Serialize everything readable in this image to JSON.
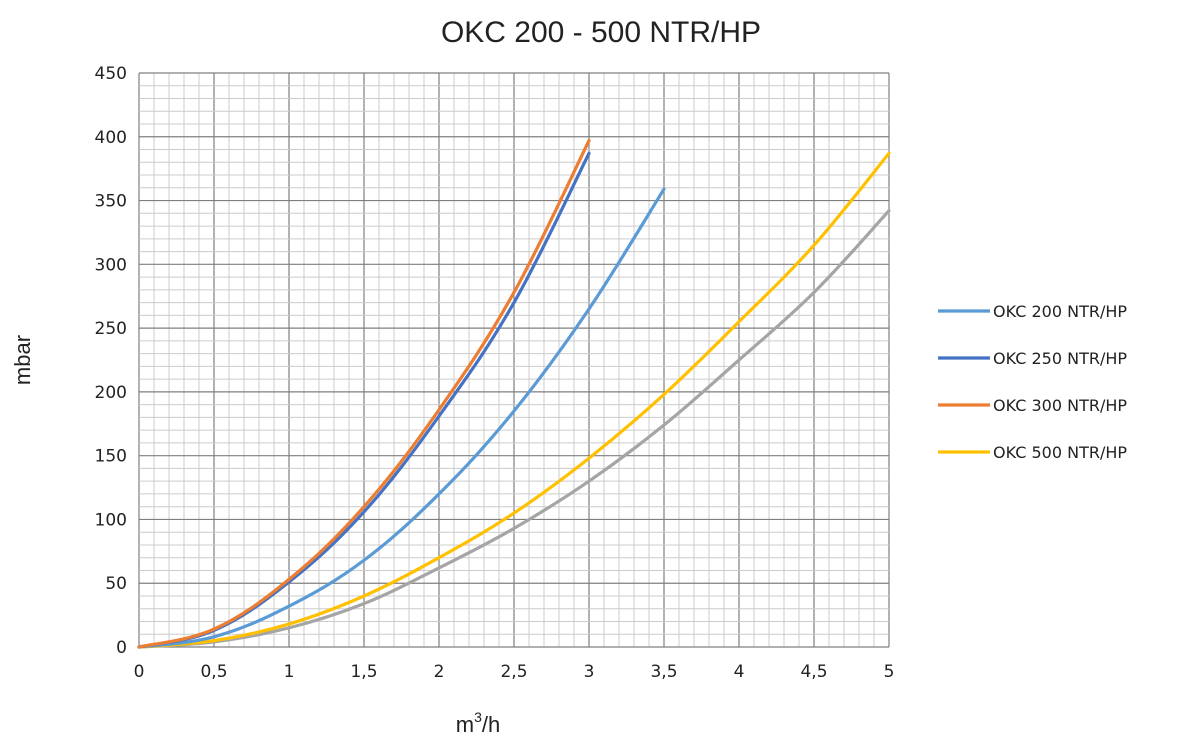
{
  "chart_data": {
    "type": "line",
    "title": "OKC 200 - 500 NTR/HP",
    "xlabel_base": "m",
    "xlabel_sup": "3",
    "xlabel_rest": "/h",
    "ylabel": "mbar",
    "xlim": [
      0,
      5
    ],
    "ylim": [
      0,
      450
    ],
    "x_ticks": [
      "0",
      "0,5",
      "1",
      "1,5",
      "2",
      "2,5",
      "3",
      "3,5",
      "4",
      "4,5",
      "5"
    ],
    "x_tick_values": [
      0,
      0.5,
      1,
      1.5,
      2,
      2.5,
      3,
      3.5,
      4,
      4.5,
      5
    ],
    "y_ticks": [
      "0",
      "50",
      "100",
      "150",
      "200",
      "250",
      "300",
      "350",
      "400",
      "450"
    ],
    "y_tick_values": [
      0,
      50,
      100,
      150,
      200,
      250,
      300,
      350,
      400,
      450
    ],
    "grid": true,
    "legend_position": "right",
    "series": [
      {
        "name": "",
        "color": "#a5a5a5",
        "x": [
          0,
          0.5,
          1,
          1.5,
          2,
          2.5,
          3,
          3.5,
          4,
          4.5,
          5
        ],
        "y": [
          0,
          4,
          15,
          34,
          62,
          93,
          130,
          174,
          225,
          278,
          342
        ]
      },
      {
        "name": "OKC 500 NTR/HP",
        "color": "#ffc000",
        "x": [
          0,
          0.5,
          1,
          1.5,
          2,
          2.5,
          3,
          3.5,
          4,
          4.5,
          5
        ],
        "y": [
          0,
          5,
          18,
          40,
          70,
          105,
          148,
          198,
          255,
          315,
          387
        ]
      },
      {
        "name": "OKC 200 NTR/HP",
        "color": "#5b9bd5",
        "x": [
          0,
          0.5,
          1,
          1.5,
          2,
          2.5,
          3,
          3.5
        ],
        "y": [
          0,
          8,
          32,
          68,
          120,
          185,
          265,
          359
        ]
      },
      {
        "name": "OKC 250 NTR/HP",
        "color": "#4472c4",
        "x": [
          0,
          0.5,
          1,
          1.5,
          2,
          2.5,
          3
        ],
        "y": [
          0,
          13,
          51,
          106,
          181,
          270,
          387
        ]
      },
      {
        "name": "OKC 300 NTR/HP",
        "color": "#ed7d31",
        "x": [
          0,
          0.5,
          1,
          1.5,
          2,
          2.5,
          3
        ],
        "y": [
          0,
          14,
          53,
          110,
          186,
          278,
          397
        ]
      }
    ],
    "legend_order": [
      2,
      3,
      4,
      1
    ]
  }
}
